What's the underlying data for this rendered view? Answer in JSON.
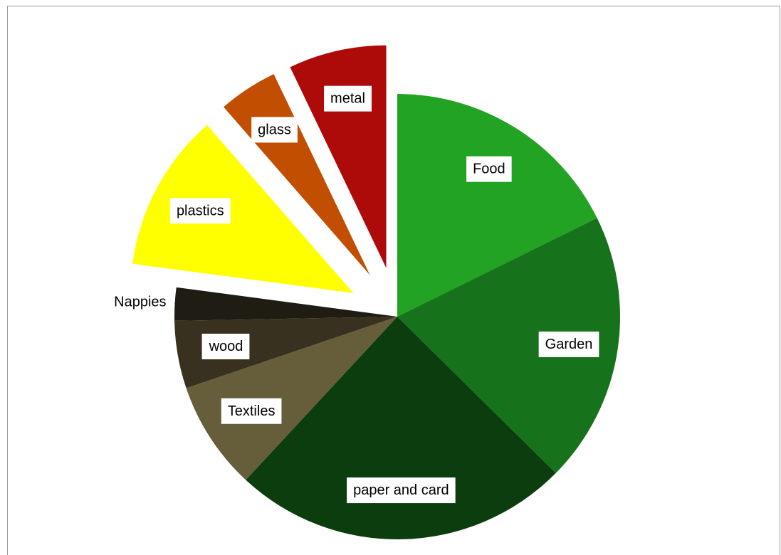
{
  "chart_data": {
    "type": "pie",
    "title": "",
    "legend": "none",
    "slices": [
      {
        "label": "Food",
        "value": 17.7,
        "color": "#22a323",
        "exploded": false,
        "label_box": true
      },
      {
        "label": "Garden",
        "value": 19.7,
        "color": "#16721b",
        "exploded": false,
        "label_box": true
      },
      {
        "label": "paper and card",
        "value": 24.5,
        "color": "#0c3d0f",
        "exploded": false,
        "label_box": true
      },
      {
        "label": "Textiles",
        "value": 7.9,
        "color": "#665d3b",
        "exploded": false,
        "label_box": true
      },
      {
        "label": "wood",
        "value": 4.9,
        "color": "#39311f",
        "exploded": false,
        "label_box": true
      },
      {
        "label": "Nappies",
        "value": 2.4,
        "color": "#1f1c13",
        "exploded": false,
        "label_box": false
      },
      {
        "label": "plastics",
        "value": 11.5,
        "color": "#ffff00",
        "exploded": true,
        "label_box": true
      },
      {
        "label": "glass",
        "value": 4.3,
        "color": "#c14e01",
        "exploded": true,
        "label_box": true
      },
      {
        "label": "metal",
        "value": 7.1,
        "color": "#ad0a0a",
        "exploded": true,
        "label_box": true
      }
    ]
  }
}
